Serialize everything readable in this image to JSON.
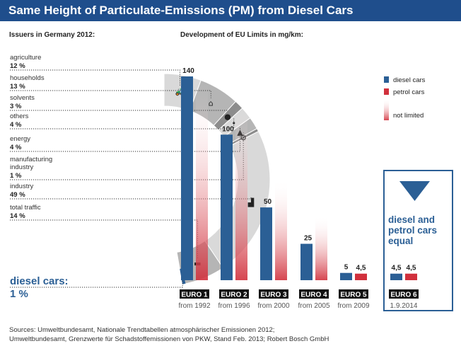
{
  "header": {
    "title": "Same Height of Particulate-Emissions (PM) from Diesel Cars",
    "left_subtitle": "Issuers in Germany 2012:",
    "right_subtitle": "Development of EU Limits in mg/km:"
  },
  "colors": {
    "title_bar": "#1f4e8c",
    "diesel": "#2b5f95",
    "petrol": "#d1303c",
    "ring_dark": "#8c8c8c",
    "ring_mid": "#b5b5b5",
    "ring_light": "#d9d9d9"
  },
  "chart_data": [
    {
      "type": "pie",
      "title": "Issuers in Germany 2012:",
      "slices": [
        {
          "label": "agriculture",
          "value": 12,
          "value_label": "12 %",
          "icon": "tractor-icon"
        },
        {
          "label": "households",
          "value": 13,
          "value_label": "13 %",
          "icon": "house-icon"
        },
        {
          "label": "solvents",
          "value": 3,
          "value_label": "3 %",
          "icon": "drop-icon"
        },
        {
          "label": "others",
          "value": 4,
          "value_label": "4 %",
          "icon": "dots-icon"
        },
        {
          "label": "energy",
          "value": 4,
          "value_label": "4 %",
          "icon": "power-plant-icon"
        },
        {
          "label": "manufacturing industry",
          "value": 1,
          "value_label": "1 %",
          "icon": "gear-icon"
        },
        {
          "label": "industry",
          "value": 49,
          "value_label": "49 %",
          "icon": "factory-icon"
        },
        {
          "label": "total traffic",
          "value": 14,
          "value_label": "14 %",
          "icon": "car-icon"
        }
      ],
      "highlight": {
        "label": "diesel cars:",
        "value": 1,
        "value_label": "1 %"
      }
    },
    {
      "type": "bar",
      "title": "Development of EU Limits in mg/km:",
      "categories": [
        "EURO 1",
        "EURO 2",
        "EURO 3",
        "EURO 4",
        "EURO 5",
        "EURO 6"
      ],
      "dates": [
        "from 1992",
        "from 1996",
        "from 2000",
        "from 2005",
        "from 2009",
        "1.9.2014"
      ],
      "series": [
        {
          "name": "diesel cars",
          "values": [
            140,
            100,
            50,
            25,
            5,
            4.5
          ],
          "labels": [
            "140",
            "100",
            "50",
            "25",
            "5",
            "4,5"
          ]
        },
        {
          "name": "petrol cars",
          "values": [
            null,
            null,
            null,
            null,
            4.5,
            4.5
          ],
          "labels": [
            "",
            "",
            "",
            "",
            "4,5",
            "4,5"
          ]
        }
      ],
      "legend": {
        "diesel": "diesel cars",
        "petrol": "petrol cars",
        "not_limited": "not limited",
        "placement": "top-right"
      },
      "callout": "diesel and petrol cars equal",
      "ylim": [
        0,
        150
      ]
    }
  ],
  "sources": {
    "line1": "Sources: Umweltbundesamt, Nationale Trendtabellen atmosphärischer Emissionen 2012;",
    "line2": "Umweltbundesamt, Grenzwerte für Schadstoffemissionen von PKW, Stand Feb. 2013; Robert Bosch GmbH"
  }
}
